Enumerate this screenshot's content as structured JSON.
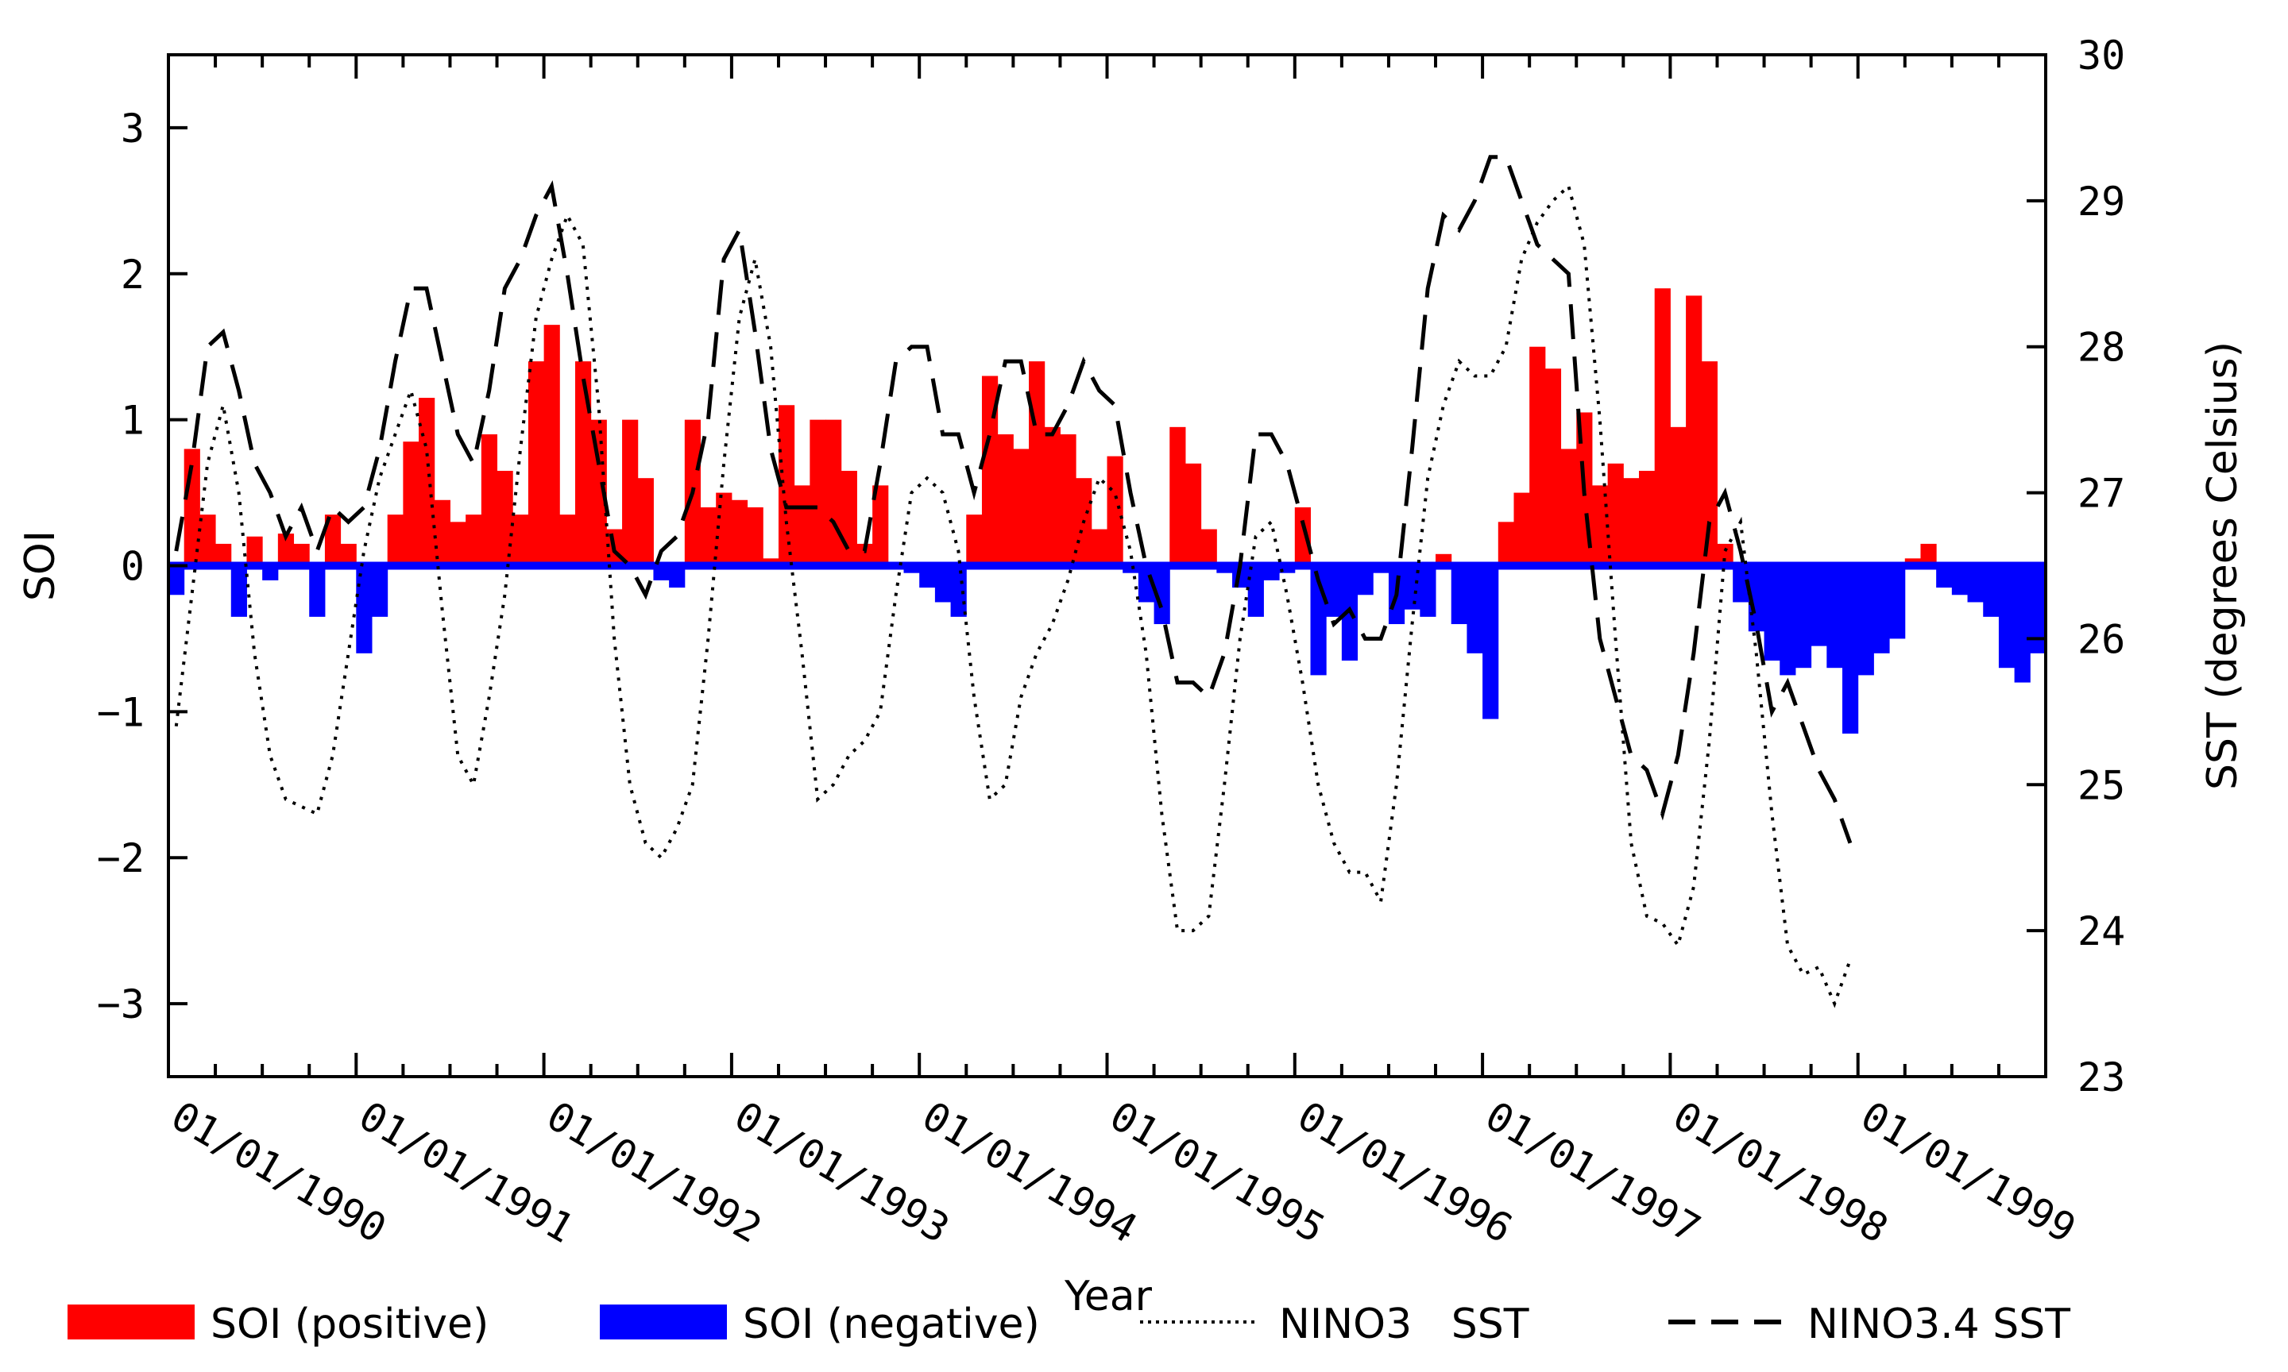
{
  "chart_data": {
    "type": "bar",
    "title": "",
    "xlabel": "Year",
    "ylabel": "SOI",
    "y2label": "SST (degrees Celsius)",
    "ylim": [
      -3.5,
      3.5
    ],
    "y2lim": [
      23,
      30
    ],
    "yticks": [
      -3,
      -2,
      -1,
      0,
      1,
      2,
      3
    ],
    "ytick_labels": [
      "−3",
      "−2",
      "−1",
      "0",
      "1",
      "2",
      "3"
    ],
    "y2ticks": [
      23,
      24,
      25,
      26,
      27,
      28,
      29,
      30
    ],
    "y2tick_labels": [
      "23",
      "24",
      "25",
      "26",
      "27",
      "28",
      "29",
      "30"
    ],
    "xrange_months": [
      0,
      120
    ],
    "xtick_labels": [
      "01/01/1990",
      "01/01/1991",
      "01/01/1992",
      "01/01/1993",
      "01/01/1994",
      "01/01/1995",
      "01/01/1996",
      "01/01/1997",
      "01/01/1998",
      "01/01/1999"
    ],
    "minor_ticks_per_year": 4,
    "grid": false,
    "legend_position": "bottom",
    "colors": {
      "positive": "#ff0000",
      "negative": "#0000ff",
      "line": "#000000"
    },
    "legend": [
      {
        "label": "SOI (positive)",
        "kind": "box",
        "color": "#ff0000"
      },
      {
        "label": "SOI (negative)",
        "kind": "box",
        "color": "#0000ff"
      },
      {
        "label": "NINO3   SST",
        "kind": "dotted"
      },
      {
        "label": "NINO3.4 SST",
        "kind": "dashed"
      }
    ],
    "series": [
      {
        "name": "SOI",
        "axis": "left",
        "values": [
          -0.2,
          0.8,
          0.35,
          0.15,
          -0.35,
          0.2,
          -0.1,
          0.22,
          0.15,
          -0.35,
          0.35,
          0.15,
          -0.6,
          -0.35,
          0.35,
          0.85,
          1.15,
          0.45,
          0.3,
          0.35,
          0.9,
          0.65,
          0.35,
          1.4,
          1.65,
          0.35,
          1.4,
          1.0,
          0.25,
          1.0,
          0.6,
          -0.1,
          -0.15,
          1.0,
          0.4,
          0.5,
          0.45,
          0.4,
          0.05,
          1.1,
          0.55,
          1.0,
          1.0,
          0.65,
          0.15,
          0.55,
          0.0,
          -0.05,
          -0.15,
          -0.25,
          -0.35,
          0.35,
          1.3,
          0.9,
          0.8,
          1.4,
          0.95,
          0.9,
          0.6,
          0.25,
          0.75,
          -0.05,
          -0.25,
          -0.4,
          0.95,
          0.7,
          0.25,
          -0.05,
          -0.15,
          -0.35,
          -0.1,
          -0.05,
          0.4,
          -0.75,
          -0.35,
          -0.65,
          -0.2,
          -0.05,
          -0.4,
          -0.3,
          -0.35,
          0.08,
          -0.4,
          -0.6,
          -1.05,
          0.3,
          0.5,
          1.5,
          1.35,
          0.8,
          1.05,
          0.55,
          0.7,
          0.6,
          0.65,
          1.9,
          0.95,
          1.85,
          1.4,
          0.15,
          -0.25,
          -0.45,
          -0.65,
          -0.75,
          -0.7,
          -0.55,
          -0.7,
          -1.15,
          -0.75,
          -0.6,
          -0.5,
          0.05,
          0.15,
          -0.15,
          -0.2,
          -0.25,
          -0.35,
          -0.7,
          -0.8,
          -0.6
        ]
      },
      {
        "name": "NINO3 SST",
        "axis": "right",
        "style": "dotted",
        "values": [
          25.4,
          26.3,
          27.2,
          27.6,
          27.0,
          25.9,
          25.2,
          24.9,
          24.85,
          24.8,
          25.2,
          25.9,
          26.6,
          27.1,
          27.4,
          27.7,
          27.3,
          26.2,
          25.2,
          25.0,
          25.6,
          26.3,
          27.3,
          28.2,
          28.6,
          28.9,
          28.7,
          27.6,
          26.0,
          25.0,
          24.6,
          24.5,
          24.7,
          25.0,
          26.0,
          27.2,
          28.2,
          28.6,
          28.0,
          26.8,
          25.9,
          24.9,
          25.0,
          25.2,
          25.3,
          25.5,
          26.3,
          27.0,
          27.1,
          27.0,
          26.6,
          25.6,
          24.9,
          25.0,
          25.6,
          25.9,
          26.1,
          26.4,
          26.8,
          27.1,
          27.0,
          26.6,
          25.9,
          24.8,
          24.0,
          24.0,
          24.1,
          25.0,
          26.0,
          26.7,
          26.8,
          26.3,
          25.7,
          25.0,
          24.6,
          24.4,
          24.4,
          24.2,
          25.0,
          26.1,
          27.1,
          27.6,
          27.9,
          27.8,
          27.8,
          28.0,
          28.6,
          28.85,
          29.0,
          29.1,
          28.7,
          27.5,
          26.0,
          24.6,
          24.1,
          24.05,
          23.9,
          24.3,
          25.3,
          26.6,
          26.8,
          25.9,
          24.8,
          23.9,
          23.7,
          23.75,
          23.5,
          23.8
        ]
      },
      {
        "name": "NINO3.4 SST",
        "axis": "right",
        "style": "dashed",
        "values": [
          26.6,
          27.2,
          28.0,
          28.1,
          27.7,
          27.2,
          27.0,
          26.7,
          26.9,
          26.6,
          26.9,
          26.8,
          26.9,
          27.3,
          27.9,
          28.4,
          28.4,
          27.9,
          27.4,
          27.2,
          27.7,
          28.4,
          28.6,
          28.9,
          29.1,
          28.5,
          27.8,
          27.2,
          26.6,
          26.5,
          26.3,
          26.6,
          26.7,
          27.0,
          27.5,
          28.6,
          28.8,
          28.1,
          27.3,
          26.9,
          26.9,
          26.9,
          26.8,
          26.6,
          26.6,
          27.2,
          27.9,
          28.0,
          28.0,
          27.4,
          27.4,
          27.0,
          27.4,
          27.9,
          27.9,
          27.4,
          27.4,
          27.6,
          27.9,
          27.7,
          27.6,
          27.0,
          26.5,
          26.2,
          25.7,
          25.7,
          25.6,
          25.9,
          26.5,
          27.4,
          27.4,
          27.2,
          26.8,
          26.4,
          26.1,
          26.2,
          26.0,
          26.0,
          26.3,
          27.3,
          28.4,
          28.9,
          28.8,
          29.0,
          29.3,
          29.3,
          29.0,
          28.7,
          28.6,
          28.5,
          27.0,
          26.0,
          25.6,
          25.2,
          25.1,
          24.8,
          25.2,
          25.9,
          26.8,
          27.0,
          26.6,
          26.1,
          25.5,
          25.7,
          25.4,
          25.1,
          24.9,
          24.6
        ]
      }
    ]
  }
}
